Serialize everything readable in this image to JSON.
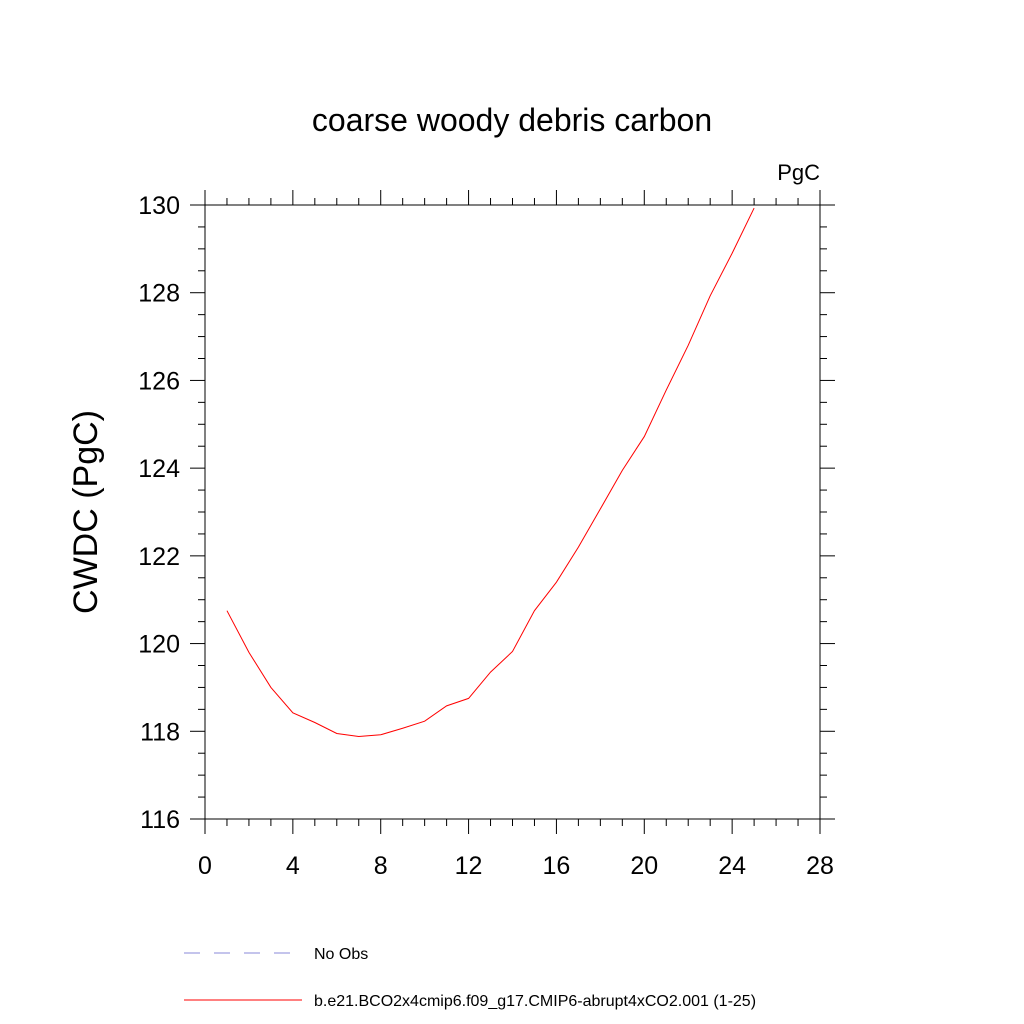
{
  "chart_data": {
    "type": "line",
    "title": "coarse woody debris carbon",
    "units_label": "PgC",
    "xlabel": "",
    "ylabel": "CWDC  (PgC)",
    "xlim": [
      0,
      28
    ],
    "ylim": [
      116,
      130
    ],
    "x_ticks": [
      0,
      4,
      8,
      12,
      16,
      20,
      24,
      28
    ],
    "y_ticks": [
      116,
      118,
      120,
      122,
      124,
      126,
      128,
      130
    ],
    "grid": false,
    "legend_position": "bottom",
    "series": [
      {
        "name": "b.e21.BCO2x4cmip6.f09_g17.CMIP6-abrupt4xCO2.001 (1-25)",
        "color": "#ff0000",
        "style": "solid",
        "x": [
          1,
          2,
          3,
          4,
          5,
          6,
          7,
          8,
          9,
          10,
          11,
          12,
          13,
          14,
          15,
          16,
          17,
          18,
          19,
          20,
          21,
          22,
          23,
          24,
          25
        ],
        "y": [
          120.75,
          119.8,
          119.0,
          118.42,
          118.2,
          117.95,
          117.88,
          117.92,
          118.07,
          118.23,
          118.58,
          118.75,
          119.35,
          119.82,
          120.75,
          121.4,
          122.2,
          123.07,
          123.95,
          124.72,
          125.78,
          126.8,
          127.93,
          128.9,
          129.93
        ]
      }
    ],
    "legend": [
      {
        "label": "No Obs",
        "color": "#8a8ad8",
        "style": "dashed"
      },
      {
        "label": "b.e21.BCO2x4cmip6.f09_g17.CMIP6-abrupt4xCO2.001 (1-25)",
        "color": "#ff0000",
        "style": "solid"
      }
    ]
  }
}
